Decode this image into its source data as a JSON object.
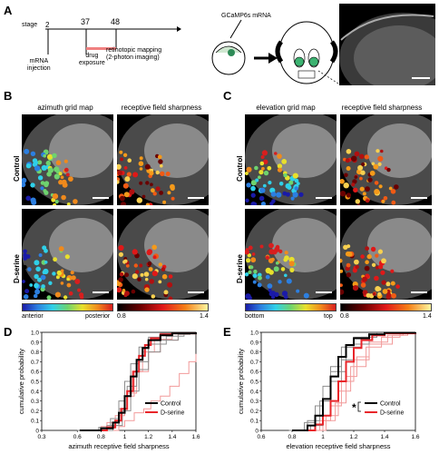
{
  "panels": {
    "A": "A",
    "B": "B",
    "C": "C",
    "D": "D",
    "E": "E"
  },
  "timeline": {
    "stage_label": "stage",
    "stages": [
      "2",
      "37",
      "48"
    ],
    "event1": "mRNA\ninjection",
    "event2": "drug\nexposure",
    "event3": "retinotopic mapping\n(2-photon imaging)"
  },
  "schematic": {
    "mrna_label": "GCaMP6s mRNA"
  },
  "panelB": {
    "col1": "azimuth grid map",
    "col2": "receptive field sharpness",
    "row1": "Control",
    "row2": "D-serine",
    "cbar1_left": "anterior",
    "cbar1_right": "posterior",
    "cbar2_left": "0.8",
    "cbar2_right": "1.4"
  },
  "panelC": {
    "col1": "elevation grid map",
    "col2": "receptive field sharpness",
    "row1": "Control",
    "row2": "D-serine",
    "cbar1_left": "bottom",
    "cbar1_right": "top",
    "cbar2_left": "0.8",
    "cbar2_right": "1.4"
  },
  "colors": {
    "control": "#000000",
    "control_light": "#8c8c8c",
    "dserine": "#e8252a",
    "dserine_light": "#f29a9a"
  },
  "chart_data": [
    {
      "type": "line",
      "panel": "D",
      "xlabel": "azimuth receptive field sharpness",
      "ylabel": "cumulative probability",
      "xlim": [
        0.3,
        1.6
      ],
      "ylim": [
        0,
        1.0
      ],
      "xticks": [
        "0.3",
        "0.6",
        "0.8",
        "1",
        "1.2",
        "1.4",
        "1.6"
      ],
      "yticks": [
        "0",
        "0.1",
        "0.2",
        "0.3",
        "0.4",
        "0.5",
        "0.6",
        "0.7",
        "0.8",
        "0.9",
        "1.0"
      ],
      "legend": [
        "Control",
        "D-serine"
      ],
      "series": [
        {
          "name": "Control",
          "x": [
            0.62,
            0.8,
            0.9,
            0.95,
            1.0,
            1.05,
            1.1,
            1.15,
            1.2,
            1.3,
            1.4,
            1.6
          ],
          "y": [
            0,
            0.02,
            0.08,
            0.18,
            0.35,
            0.55,
            0.72,
            0.84,
            0.92,
            0.97,
            0.99,
            1.0
          ]
        },
        {
          "name": "D-serine",
          "x": [
            0.68,
            0.85,
            0.92,
            0.97,
            1.02,
            1.07,
            1.12,
            1.17,
            1.22,
            1.3,
            1.4,
            1.6
          ],
          "y": [
            0,
            0.03,
            0.1,
            0.22,
            0.4,
            0.6,
            0.76,
            0.87,
            0.94,
            0.98,
            0.99,
            1.0
          ]
        },
        {
          "x": [
            0.6,
            0.78,
            0.88,
            0.95,
            1.0,
            1.05,
            1.12,
            1.2,
            1.3,
            1.45
          ],
          "y": [
            0,
            0.03,
            0.12,
            0.3,
            0.5,
            0.68,
            0.85,
            0.95,
            0.99,
            1.0
          ]
        },
        {
          "x": [
            0.7,
            0.9,
            0.98,
            1.05,
            1.12,
            1.2,
            1.3,
            1.45,
            1.55
          ],
          "y": [
            0,
            0.05,
            0.2,
            0.4,
            0.62,
            0.8,
            0.92,
            0.98,
            1.0
          ]
        },
        {
          "x": [
            0.65,
            0.85,
            0.95,
            1.02,
            1.1,
            1.2,
            1.35,
            1.5
          ],
          "y": [
            0,
            0.05,
            0.22,
            0.45,
            0.7,
            0.88,
            0.96,
            1.0
          ]
        },
        {
          "x": [
            0.62,
            0.8,
            0.92,
            1.0,
            1.08,
            1.15,
            1.25,
            1.4
          ],
          "y": [
            0,
            0.04,
            0.15,
            0.35,
            0.6,
            0.8,
            0.93,
            1.0
          ]
        },
        {
          "x": [
            0.78,
            0.95,
            1.0,
            1.08,
            1.16,
            1.22,
            1.3,
            1.38,
            1.46,
            1.54,
            1.6
          ],
          "y": [
            0,
            0.04,
            0.1,
            0.18,
            0.22,
            0.3,
            0.35,
            0.45,
            0.58,
            0.7,
            0.78
          ]
        },
        {
          "x": [
            0.7,
            0.85,
            0.95,
            1.02,
            1.1,
            1.2,
            1.3,
            1.45
          ],
          "y": [
            0,
            0.08,
            0.2,
            0.38,
            0.6,
            0.8,
            0.92,
            1.0
          ]
        }
      ]
    },
    {
      "type": "line",
      "panel": "E",
      "xlabel": "elevation receptive field sharpness",
      "ylabel": "cumulative probability",
      "xlim": [
        0.6,
        1.6
      ],
      "ylim": [
        0,
        1.0
      ],
      "xticks": [
        "0.6",
        "0.8",
        "1",
        "1.2",
        "1.4",
        "1.6"
      ],
      "yticks": [
        "0",
        "0.1",
        "0.2",
        "0.3",
        "0.4",
        "0.5",
        "0.6",
        "0.7",
        "0.8",
        "0.9",
        "1.0"
      ],
      "legend": [
        "Control",
        "D-serine"
      ],
      "annotation": "*",
      "series": [
        {
          "name": "Control",
          "x": [
            0.8,
            0.9,
            0.95,
            1.0,
            1.05,
            1.1,
            1.15,
            1.2,
            1.3,
            1.4,
            1.6
          ],
          "y": [
            0,
            0.05,
            0.15,
            0.32,
            0.55,
            0.75,
            0.87,
            0.94,
            0.98,
            0.995,
            1.0
          ]
        },
        {
          "name": "D-serine",
          "x": [
            0.82,
            0.95,
            1.0,
            1.05,
            1.1,
            1.15,
            1.2,
            1.25,
            1.32,
            1.4,
            1.6
          ],
          "y": [
            0,
            0.06,
            0.15,
            0.3,
            0.5,
            0.7,
            0.84,
            0.92,
            0.97,
            0.99,
            1.0
          ]
        },
        {
          "x": [
            0.78,
            0.88,
            0.95,
            1.0,
            1.05,
            1.12,
            1.2,
            1.3
          ],
          "y": [
            0,
            0.08,
            0.25,
            0.45,
            0.65,
            0.85,
            0.95,
            1.0
          ]
        },
        {
          "x": [
            0.82,
            0.92,
            1.0,
            1.05,
            1.12,
            1.2,
            1.3,
            1.4
          ],
          "y": [
            0,
            0.05,
            0.3,
            0.5,
            0.72,
            0.88,
            0.97,
            1.0
          ]
        },
        {
          "x": [
            0.8,
            0.9,
            0.98,
            1.05,
            1.15,
            1.25,
            1.35
          ],
          "y": [
            0,
            0.1,
            0.3,
            0.6,
            0.85,
            0.95,
            1.0
          ]
        },
        {
          "x": [
            0.85,
            0.98,
            1.05,
            1.12,
            1.2,
            1.3,
            1.45,
            1.55
          ],
          "y": [
            0,
            0.1,
            0.25,
            0.5,
            0.72,
            0.88,
            0.97,
            1.0
          ]
        },
        {
          "x": [
            0.85,
            1.0,
            1.08,
            1.15,
            1.22,
            1.3,
            1.42,
            1.52
          ],
          "y": [
            0,
            0.1,
            0.28,
            0.55,
            0.75,
            0.9,
            0.97,
            1.0
          ]
        },
        {
          "x": [
            0.9,
            1.02,
            1.1,
            1.18,
            1.28,
            1.38,
            1.5
          ],
          "y": [
            0,
            0.15,
            0.4,
            0.65,
            0.85,
            0.95,
            1.0
          ]
        }
      ]
    }
  ]
}
